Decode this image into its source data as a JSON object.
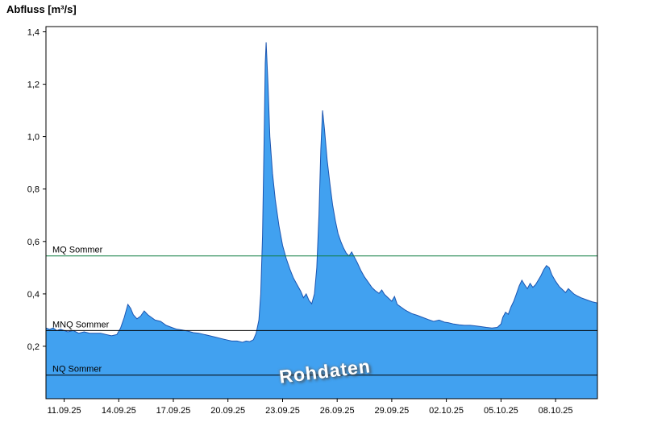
{
  "chart_data": {
    "type": "area",
    "title": "Abfluss [m³/s]",
    "ylabel": "Abfluss [m³/s]",
    "xlabel": "",
    "grid": false,
    "legend_position": "none",
    "watermark": "Rohdaten",
    "xlim_days": [
      0,
      30.3
    ],
    "ylim": [
      0,
      1.42
    ],
    "xticks": [
      {
        "day": 1,
        "label": "11.09.25"
      },
      {
        "day": 4,
        "label": "14.09.25"
      },
      {
        "day": 7,
        "label": "17.09.25"
      },
      {
        "day": 10,
        "label": "20.09.25"
      },
      {
        "day": 13,
        "label": "23.09.25"
      },
      {
        "day": 16,
        "label": "26.09.25"
      },
      {
        "day": 19,
        "label": "29.09.25"
      },
      {
        "day": 22,
        "label": "02.10.25"
      },
      {
        "day": 25,
        "label": "05.10.25"
      },
      {
        "day": 28,
        "label": "08.10.25"
      }
    ],
    "yticks": [
      {
        "value": 0.2,
        "label": "0,2"
      },
      {
        "value": 0.4,
        "label": "0,4"
      },
      {
        "value": 0.6,
        "label": "0,6"
      },
      {
        "value": 0.8,
        "label": "0,8"
      },
      {
        "value": 1.0,
        "label": "1,0"
      },
      {
        "value": 1.2,
        "label": "1,2"
      },
      {
        "value": 1.4,
        "label": "1,4"
      }
    ],
    "reference_lines": [
      {
        "label": "MQ Sommer",
        "value": 0.545,
        "color": "#0e7d40"
      },
      {
        "label": "MNQ Sommer",
        "value": 0.26,
        "color": "#000000"
      },
      {
        "label": "NQ Sommer",
        "value": 0.09,
        "color": "#000000"
      }
    ],
    "series": [
      {
        "name": "Abfluss Rohdaten",
        "fill": "#41a1f0",
        "stroke": "#1c55b0",
        "points": [
          [
            0,
            0.27
          ],
          [
            0.2,
            0.265
          ],
          [
            0.4,
            0.27
          ],
          [
            0.6,
            0.26
          ],
          [
            0.8,
            0.265
          ],
          [
            1,
            0.26
          ],
          [
            1.2,
            0.255
          ],
          [
            1.5,
            0.26
          ],
          [
            1.8,
            0.25
          ],
          [
            2.1,
            0.255
          ],
          [
            2.4,
            0.25
          ],
          [
            2.7,
            0.25
          ],
          [
            3,
            0.25
          ],
          [
            3.3,
            0.245
          ],
          [
            3.6,
            0.24
          ],
          [
            3.9,
            0.245
          ],
          [
            4.1,
            0.27
          ],
          [
            4.3,
            0.31
          ],
          [
            4.5,
            0.36
          ],
          [
            4.65,
            0.345
          ],
          [
            4.8,
            0.32
          ],
          [
            5,
            0.305
          ],
          [
            5.2,
            0.315
          ],
          [
            5.4,
            0.335
          ],
          [
            5.6,
            0.32
          ],
          [
            5.8,
            0.31
          ],
          [
            6,
            0.3
          ],
          [
            6.3,
            0.295
          ],
          [
            6.6,
            0.28
          ],
          [
            6.9,
            0.272
          ],
          [
            7.2,
            0.265
          ],
          [
            7.5,
            0.262
          ],
          [
            7.8,
            0.258
          ],
          [
            8.1,
            0.252
          ],
          [
            8.4,
            0.25
          ],
          [
            8.7,
            0.245
          ],
          [
            9,
            0.24
          ],
          [
            9.3,
            0.235
          ],
          [
            9.6,
            0.23
          ],
          [
            9.9,
            0.225
          ],
          [
            10.2,
            0.22
          ],
          [
            10.5,
            0.22
          ],
          [
            10.8,
            0.215
          ],
          [
            11,
            0.22
          ],
          [
            11.2,
            0.218
          ],
          [
            11.4,
            0.225
          ],
          [
            11.55,
            0.25
          ],
          [
            11.7,
            0.3
          ],
          [
            11.8,
            0.4
          ],
          [
            11.9,
            0.62
          ],
          [
            12,
            1.05
          ],
          [
            12.05,
            1.28
          ],
          [
            12.1,
            1.36
          ],
          [
            12.2,
            1.2
          ],
          [
            12.3,
            1.0
          ],
          [
            12.45,
            0.86
          ],
          [
            12.6,
            0.76
          ],
          [
            12.8,
            0.66
          ],
          [
            13,
            0.585
          ],
          [
            13.2,
            0.535
          ],
          [
            13.4,
            0.495
          ],
          [
            13.6,
            0.46
          ],
          [
            13.8,
            0.435
          ],
          [
            14,
            0.41
          ],
          [
            14.15,
            0.385
          ],
          [
            14.3,
            0.4
          ],
          [
            14.45,
            0.375
          ],
          [
            14.6,
            0.362
          ],
          [
            14.75,
            0.4
          ],
          [
            14.88,
            0.5
          ],
          [
            15,
            0.7
          ],
          [
            15.1,
            0.95
          ],
          [
            15.2,
            1.1
          ],
          [
            15.3,
            1.03
          ],
          [
            15.45,
            0.91
          ],
          [
            15.6,
            0.82
          ],
          [
            15.75,
            0.74
          ],
          [
            15.9,
            0.68
          ],
          [
            16.05,
            0.63
          ],
          [
            16.2,
            0.6
          ],
          [
            16.35,
            0.575
          ],
          [
            16.5,
            0.555
          ],
          [
            16.65,
            0.545
          ],
          [
            16.8,
            0.56
          ],
          [
            16.95,
            0.54
          ],
          [
            17.1,
            0.52
          ],
          [
            17.3,
            0.49
          ],
          [
            17.5,
            0.465
          ],
          [
            17.7,
            0.445
          ],
          [
            17.9,
            0.425
          ],
          [
            18.1,
            0.412
          ],
          [
            18.3,
            0.402
          ],
          [
            18.45,
            0.415
          ],
          [
            18.6,
            0.398
          ],
          [
            18.8,
            0.385
          ],
          [
            19,
            0.372
          ],
          [
            19.15,
            0.39
          ],
          [
            19.3,
            0.36
          ],
          [
            19.5,
            0.35
          ],
          [
            19.7,
            0.34
          ],
          [
            19.9,
            0.332
          ],
          [
            20.1,
            0.325
          ],
          [
            20.4,
            0.318
          ],
          [
            20.7,
            0.31
          ],
          [
            21,
            0.302
          ],
          [
            21.3,
            0.295
          ],
          [
            21.6,
            0.3
          ],
          [
            21.9,
            0.292
          ],
          [
            22.1,
            0.29
          ],
          [
            22.4,
            0.285
          ],
          [
            22.7,
            0.282
          ],
          [
            23,
            0.28
          ],
          [
            23.3,
            0.28
          ],
          [
            23.6,
            0.278
          ],
          [
            23.9,
            0.275
          ],
          [
            24.2,
            0.272
          ],
          [
            24.5,
            0.27
          ],
          [
            24.8,
            0.272
          ],
          [
            25,
            0.285
          ],
          [
            25.1,
            0.31
          ],
          [
            25.25,
            0.33
          ],
          [
            25.4,
            0.322
          ],
          [
            25.55,
            0.35
          ],
          [
            25.7,
            0.372
          ],
          [
            25.85,
            0.4
          ],
          [
            26,
            0.43
          ],
          [
            26.15,
            0.452
          ],
          [
            26.3,
            0.435
          ],
          [
            26.45,
            0.42
          ],
          [
            26.6,
            0.44
          ],
          [
            26.75,
            0.425
          ],
          [
            26.9,
            0.435
          ],
          [
            27.05,
            0.452
          ],
          [
            27.2,
            0.47
          ],
          [
            27.35,
            0.492
          ],
          [
            27.5,
            0.508
          ],
          [
            27.65,
            0.5
          ],
          [
            27.8,
            0.472
          ],
          [
            28,
            0.448
          ],
          [
            28.2,
            0.428
          ],
          [
            28.4,
            0.415
          ],
          [
            28.55,
            0.405
          ],
          [
            28.7,
            0.42
          ],
          [
            28.85,
            0.41
          ],
          [
            29,
            0.4
          ],
          [
            29.2,
            0.392
          ],
          [
            29.4,
            0.385
          ],
          [
            29.6,
            0.38
          ],
          [
            29.8,
            0.375
          ],
          [
            30,
            0.37
          ],
          [
            30.3,
            0.365
          ]
        ]
      }
    ]
  }
}
